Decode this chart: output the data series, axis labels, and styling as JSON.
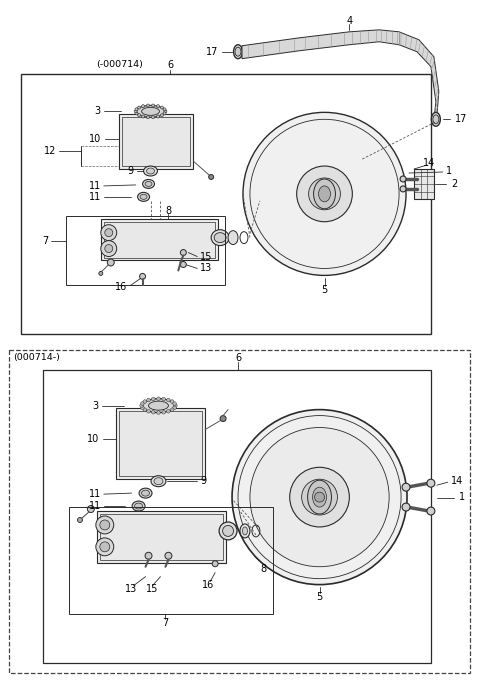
{
  "bg_color": "#ffffff",
  "fig_width": 4.8,
  "fig_height": 6.9,
  "dpi": 100,
  "line_color": "#2a2a2a",
  "text_color": "#000000",
  "font_size": 7.0
}
